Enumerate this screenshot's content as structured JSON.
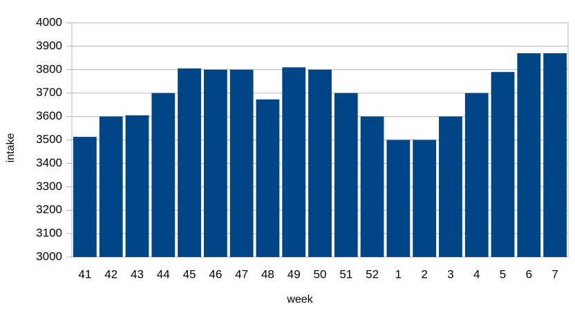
{
  "chart_data": {
    "type": "bar",
    "x_label": "week",
    "y_label": "intake",
    "categories": [
      "41",
      "42",
      "43",
      "44",
      "45",
      "46",
      "47",
      "48",
      "49",
      "50",
      "51",
      "52",
      "1",
      "2",
      "3",
      "4",
      "5",
      "6",
      "7"
    ],
    "values": [
      3513,
      3600,
      3605,
      3700,
      3805,
      3800,
      3800,
      3673,
      3810,
      3800,
      3700,
      3600,
      3500,
      3500,
      3600,
      3700,
      3790,
      3870,
      3870
    ],
    "color": "#004586",
    "ylim": [
      3000,
      4000
    ],
    "yticks": [
      3000,
      3100,
      3200,
      3300,
      3400,
      3500,
      3600,
      3700,
      3800,
      3900,
      4000
    ],
    "grid": true
  }
}
